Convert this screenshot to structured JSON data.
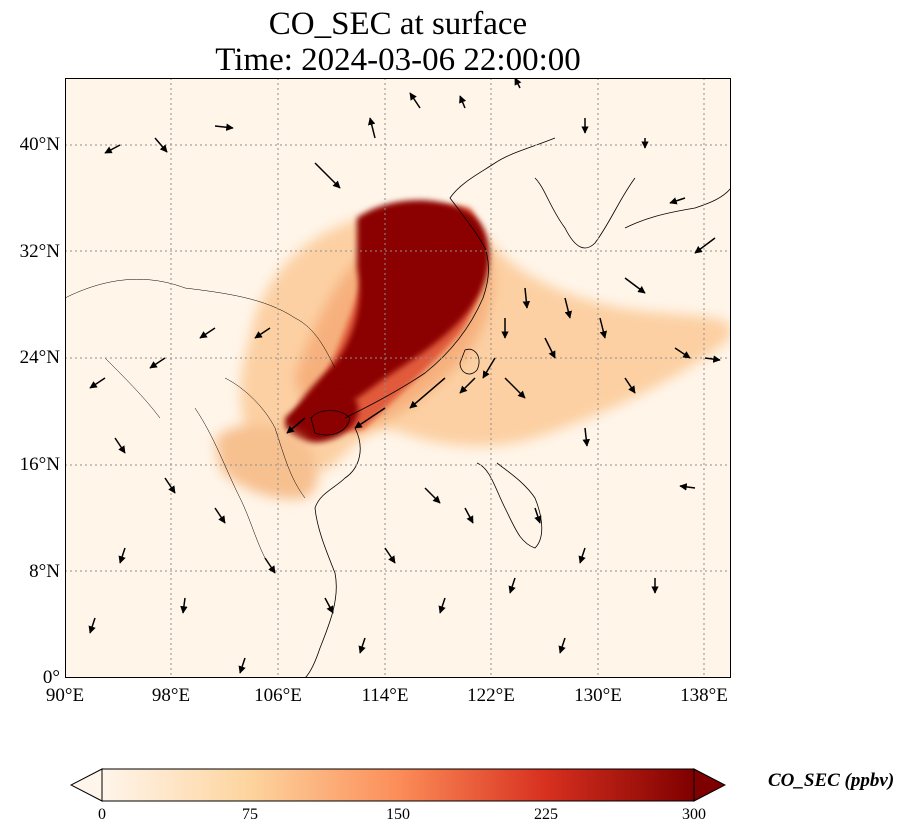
{
  "title": {
    "line1": "CO_SEC at surface",
    "line2": "Time: 2024-03-06 22:00:00"
  },
  "map": {
    "projection": "PlateCarree",
    "lon_range": [
      90,
      140
    ],
    "lat_range": [
      0,
      45
    ],
    "gridlines": "dotted gray",
    "features": [
      "coastlines",
      "country borders",
      "wind vectors"
    ],
    "lat_ticks": [
      "0°",
      "8°N",
      "16°N",
      "24°N",
      "32°N",
      "40°N"
    ],
    "lon_ticks": [
      "90°E",
      "98°E",
      "106°E",
      "114°E",
      "122°E",
      "130°E",
      "138°E"
    ]
  },
  "colorbar": {
    "label": "CO_SEC (ppbv)",
    "colormap": "OrRd",
    "min": 0,
    "max": 300,
    "extend": "both",
    "ticks": [
      "0",
      "75",
      "150",
      "225",
      "300"
    ]
  },
  "colors": {
    "low": "#fff5eb",
    "mid": "#f09a5f",
    "high": "#7f0000"
  }
}
